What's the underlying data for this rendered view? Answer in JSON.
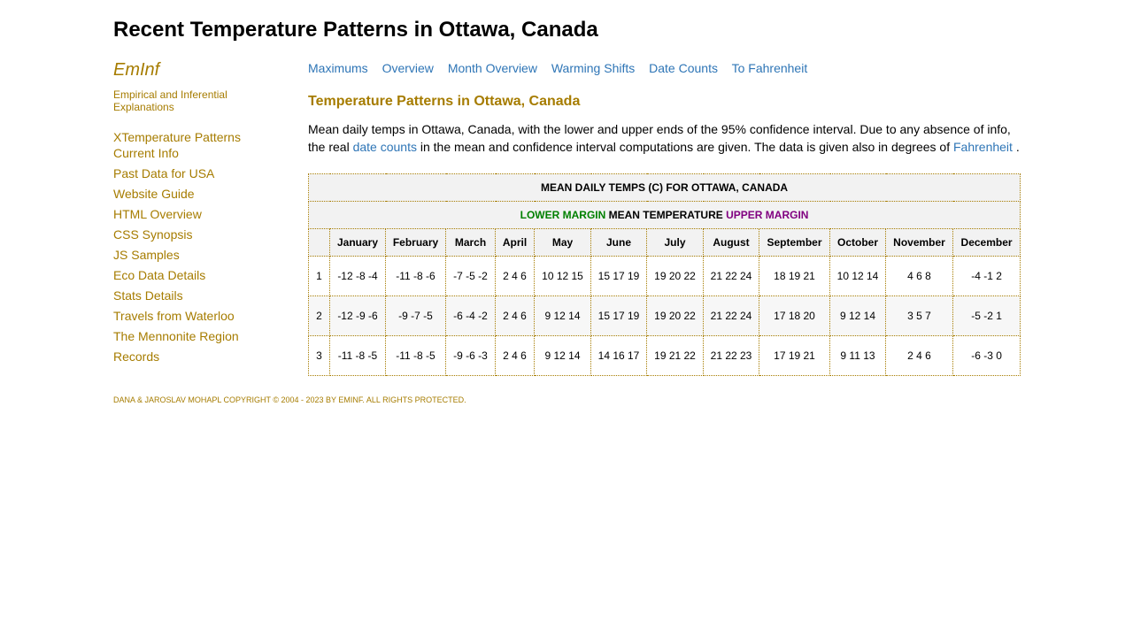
{
  "header": {
    "title": "Recent Temperature Patterns in Ottawa, Canada"
  },
  "sidebar": {
    "brand": "EmInf",
    "tagline": "Empirical and Inferential Explanations",
    "items": [
      {
        "label": "XTemperature Patterns"
      },
      {
        "label": "Current Info"
      },
      {
        "label": "Past Data for USA"
      },
      {
        "label": "Website Guide"
      },
      {
        "label": "HTML Overview"
      },
      {
        "label": "CSS Synopsis"
      },
      {
        "label": "JS Samples"
      },
      {
        "label": "Eco Data Details"
      },
      {
        "label": "Stats Details"
      },
      {
        "label": "Travels from Waterloo"
      },
      {
        "label": "The Mennonite Region"
      },
      {
        "label": "Records"
      }
    ]
  },
  "topnav": {
    "items": [
      {
        "label": "Maximums"
      },
      {
        "label": "Overview"
      },
      {
        "label": "Month Overview"
      },
      {
        "label": "Warming Shifts"
      },
      {
        "label": "Date Counts"
      },
      {
        "label": "To Fahrenheit"
      }
    ]
  },
  "main": {
    "section_title": "Temperature Patterns in Ottawa, Canada",
    "intro": {
      "part1": "Mean daily temps in Ottawa, Canada, with the lower and upper ends of the 95% confidence interval. Due to any absence of info, the real ",
      "link1": "date counts",
      "part2": " in the mean and confidence interval computations are given. The data is given also in degrees of ",
      "link2": "Fahrenheit",
      "part3": " ."
    }
  },
  "table": {
    "caption": "MEAN DAILY TEMPS (C) FOR OTTAWA, CANADA",
    "legend": {
      "lower": "LOWER MARGIN",
      "mean": "MEAN TEMPERATURE",
      "upper": "UPPER MARGIN"
    },
    "columns": [
      "",
      "January",
      "February",
      "March",
      "April",
      "May",
      "June",
      "July",
      "August",
      "September",
      "October",
      "November",
      "December"
    ],
    "rows": [
      {
        "day": "1",
        "cells": [
          "-12 -8 -4",
          "-11 -8 -6",
          "-7 -5 -2",
          "2 4 6",
          "10 12 15",
          "15 17 19",
          "19 20 22",
          "21 22 24",
          "18 19 21",
          "10 12 14",
          "4 6 8",
          "-4 -1 2"
        ]
      },
      {
        "day": "2",
        "cells": [
          "-12 -9 -6",
          "-9 -7 -5",
          "-6 -4 -2",
          "2 4 6",
          "9 12 14",
          "15 17 19",
          "19 20 22",
          "21 22 24",
          "17 18 20",
          "9 12 14",
          "3 5 7",
          "-5 -2 1"
        ]
      },
      {
        "day": "3",
        "cells": [
          "-11 -8 -5",
          "-11 -8 -5",
          "-9 -6 -3",
          "2 4 6",
          "9 12 14",
          "14 16 17",
          "19 21 22",
          "21 22 23",
          "17 19 21",
          "9 11 13",
          "2 4 6",
          "-6 -3 0"
        ]
      }
    ]
  },
  "footer": {
    "text": "DANA & JAROSLAV MOHAPL COPYRIGHT © 2004 - 2023 BY EMINF. ALL RIGHTS PROTECTED."
  },
  "colors": {
    "accent": "#a67c00",
    "link": "#2e75b6",
    "lower_margin": "#008000",
    "upper_margin": "#800080"
  }
}
